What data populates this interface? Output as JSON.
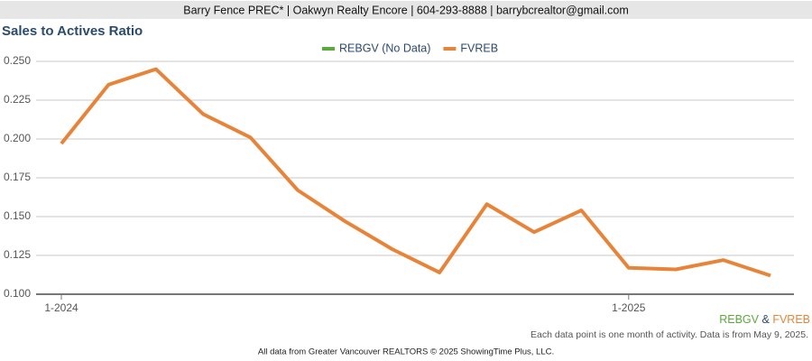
{
  "header": "Barry Fence PREC* | Oakwyn Realty Encore | 604-293-8888 | barrybcrealtor@gmail.com",
  "chart_data": {
    "type": "line",
    "title": "Sales to Actives Ratio",
    "categories": [
      "1-2024",
      null,
      null,
      null,
      null,
      null,
      null,
      null,
      null,
      null,
      null,
      null,
      "1-2025",
      null,
      null,
      null
    ],
    "series": [
      {
        "name": "REBGV (No Data)",
        "color": "#5aab3c",
        "values": [
          null,
          null,
          null,
          null,
          null,
          null,
          null,
          null,
          null,
          null,
          null,
          null,
          null,
          null,
          null,
          null
        ]
      },
      {
        "name": "FVREB",
        "color": "#e8843a",
        "values": [
          0.197,
          0.235,
          0.245,
          0.216,
          0.201,
          0.167,
          0.147,
          0.129,
          0.114,
          0.158,
          0.14,
          0.154,
          0.117,
          0.116,
          0.122,
          0.112
        ]
      }
    ],
    "ylim": [
      0.1,
      0.25
    ],
    "yticks": [
      {
        "value": 0.1,
        "label": "0.100"
      },
      {
        "value": 0.125,
        "label": "0.125"
      },
      {
        "value": 0.15,
        "label": "0.150"
      },
      {
        "value": 0.175,
        "label": "0.175"
      },
      {
        "value": 0.2,
        "label": "0.200"
      },
      {
        "value": 0.225,
        "label": "0.225"
      },
      {
        "value": 0.25,
        "label": "0.250"
      }
    ],
    "grid": true,
    "legend": "top"
  },
  "source_label": {
    "first": "REBGV",
    "join": "&",
    "second": "FVREB"
  },
  "note": "Each data point is one month of activity. Data is from May 9, 2025.",
  "footer": "All data from Greater Vancouver REALTORS © 2025 ShowingTime Plus, LLC."
}
